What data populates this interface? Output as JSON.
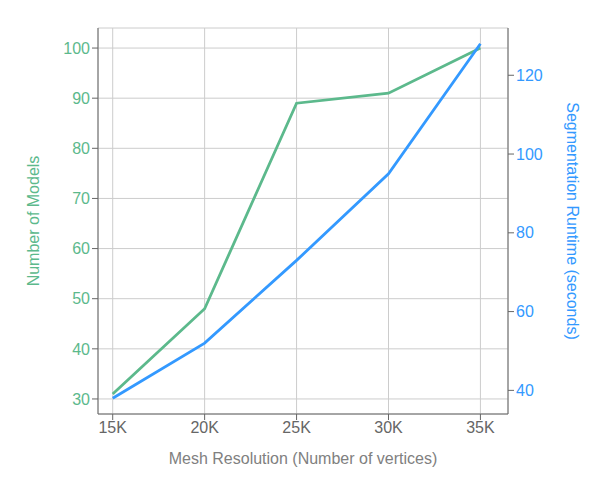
{
  "chart_data": {
    "type": "line",
    "xlabel": "Mesh Resolution (Number of vertices)",
    "ylabel": "Number of Models",
    "y2label": "Segmentation Runtime (seconds)",
    "x": [
      15000,
      20000,
      25000,
      30000,
      35000
    ],
    "xlim": [
      14200,
      36500
    ],
    "xticks": [
      {
        "value": 15000,
        "label": "15K"
      },
      {
        "value": 20000,
        "label": "20K"
      },
      {
        "value": 25000,
        "label": "25K"
      },
      {
        "value": 30000,
        "label": "30K"
      },
      {
        "value": 35000,
        "label": "35K"
      }
    ],
    "ylim": [
      27,
      104
    ],
    "yticks": [
      30,
      40,
      50,
      60,
      70,
      80,
      90,
      100
    ],
    "y2lim": [
      34,
      132
    ],
    "y2ticks": [
      40,
      60,
      80,
      100,
      120
    ],
    "grid": true,
    "series": [
      {
        "color": "#5cb98c",
        "values": [
          31,
          48,
          89,
          91,
          100
        ]
      },
      {
        "color": "#3399ff",
        "values": [
          38,
          52,
          73,
          95,
          128
        ],
        "axis": "y2"
      }
    ]
  }
}
